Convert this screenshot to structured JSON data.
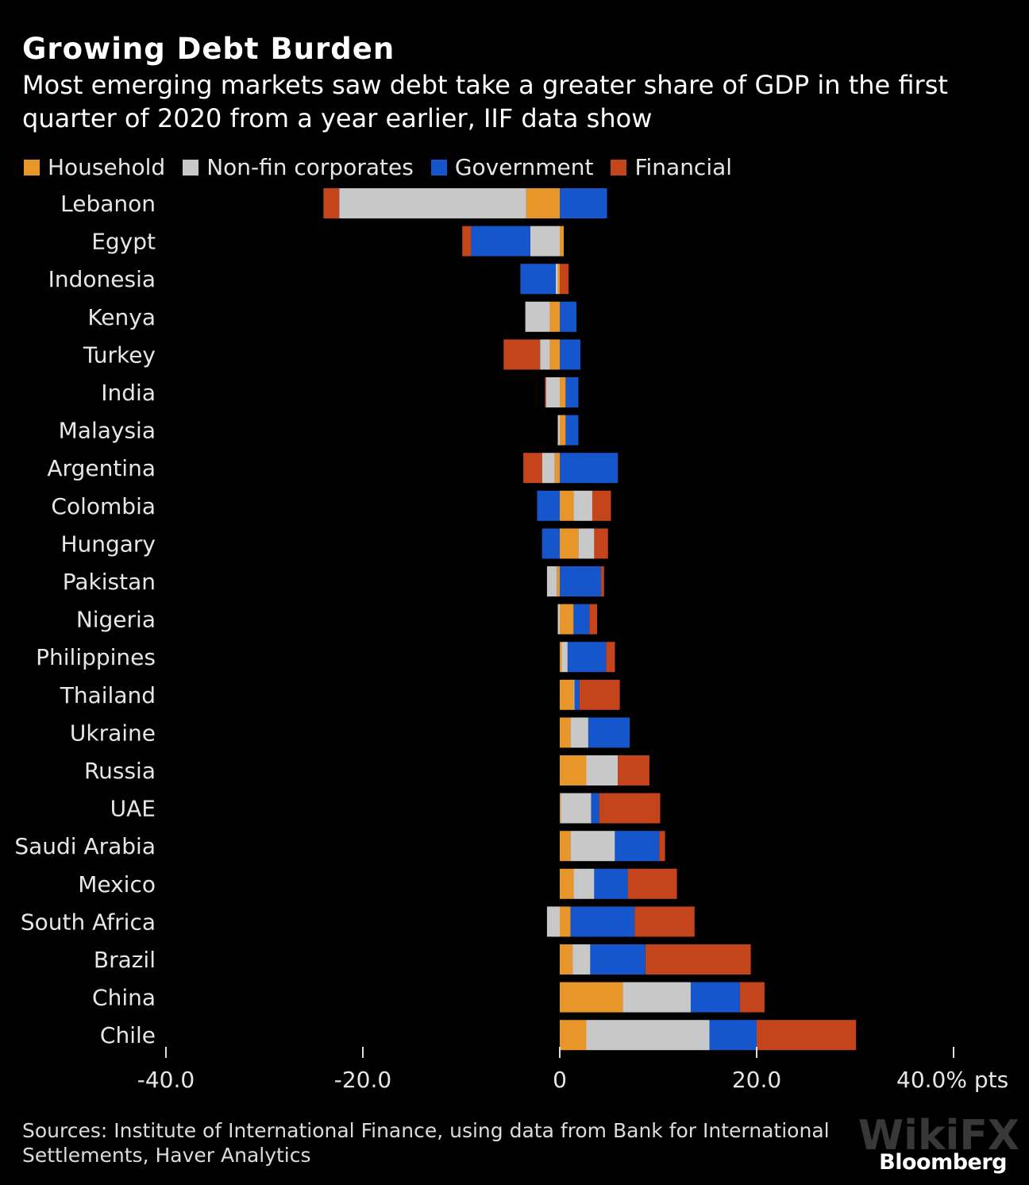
{
  "header": {
    "title": "Growing Debt Burden",
    "subtitle": "Most emerging markets saw debt take a greater share of GDP in the first quarter of 2020 from a year earlier, IIF data show"
  },
  "footer": {
    "source": "Sources: Institute of International Finance, using data from Bank for International Settlements, Haver Analytics",
    "brand": "Bloomberg",
    "watermark": "WikiFX"
  },
  "chart_data": {
    "type": "bar",
    "orientation": "horizontal",
    "stacked": true,
    "categories": [
      "Lebanon",
      "Egypt",
      "Indonesia",
      "Kenya",
      "Turkey",
      "India",
      "Malaysia",
      "Argentina",
      "Colombia",
      "Hungary",
      "Pakistan",
      "Nigeria",
      "Philippines",
      "Thailand",
      "Ukraine",
      "Russia",
      "UAE",
      "Saudi Arabia",
      "Mexico",
      "South Africa",
      "Brazil",
      "China",
      "Chile"
    ],
    "series": [
      {
        "name": "Household",
        "color": "#e8962a",
        "values": [
          -3.4,
          0.4,
          -0.2,
          -1.0,
          -1.0,
          0.6,
          0.6,
          -0.5,
          1.4,
          1.9,
          -0.3,
          1.4,
          0.2,
          1.4,
          1.1,
          2.7,
          0.1,
          1.1,
          1.4,
          1.1,
          1.3,
          6.4,
          2.7
        ]
      },
      {
        "name": "Non-fin corporates",
        "color": "#c8c8c8",
        "values": [
          -19.0,
          -3.0,
          -0.2,
          -2.5,
          -1.0,
          -1.4,
          -0.2,
          -1.3,
          1.9,
          1.6,
          -1.0,
          -0.2,
          0.6,
          0.1,
          1.8,
          3.2,
          3.1,
          4.5,
          2.1,
          -1.3,
          1.8,
          6.9,
          12.5
        ]
      },
      {
        "name": "Government",
        "color": "#1556cc",
        "values": [
          4.8,
          -6.0,
          -3.6,
          1.7,
          2.1,
          1.3,
          1.3,
          5.9,
          -2.3,
          -1.8,
          4.2,
          1.6,
          3.9,
          0.5,
          4.2,
          0.0,
          0.8,
          4.5,
          3.4,
          6.5,
          5.6,
          5.0,
          4.8
        ]
      },
      {
        "name": "Financial",
        "color": "#c4441c",
        "values": [
          -1.6,
          -0.9,
          0.9,
          0.0,
          -3.7,
          -0.1,
          0.0,
          -1.9,
          1.9,
          1.4,
          0.3,
          0.8,
          0.9,
          4.1,
          0.0,
          3.2,
          6.2,
          0.6,
          5.0,
          6.1,
          10.7,
          2.5,
          10.1
        ]
      }
    ],
    "xlim": [
      -40,
      40
    ],
    "x_ticks": [
      -40,
      -20,
      0,
      20,
      40
    ],
    "x_tick_labels": [
      "-40.0",
      "-20.0",
      "0",
      "20.0",
      "40.0% pts"
    ],
    "legend_position": "top-left",
    "grid": false
  }
}
